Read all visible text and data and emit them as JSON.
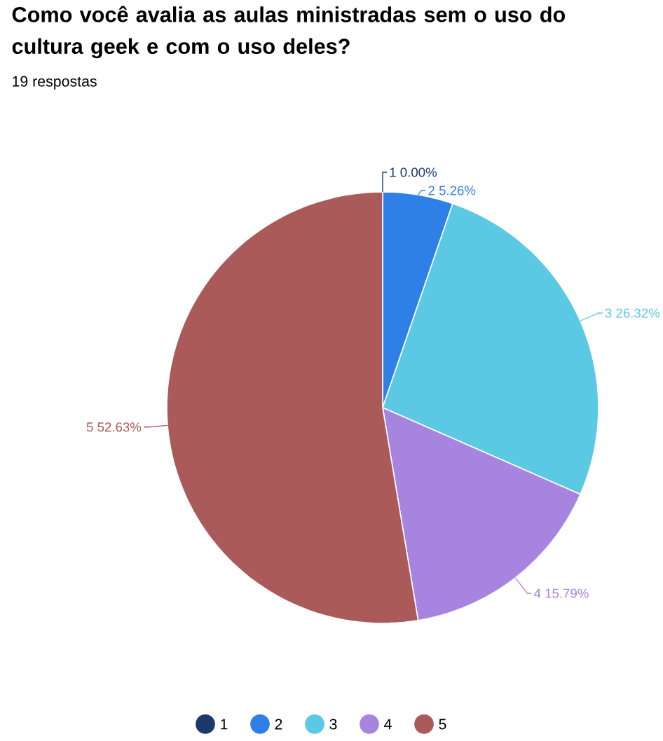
{
  "chart_data": {
    "type": "pie",
    "title": "Como você avalia as aulas ministradas sem o uso do cultura geek e com o uso deles?",
    "subtitle": "19 respostas",
    "categories": [
      "1",
      "2",
      "3",
      "4",
      "5"
    ],
    "values": [
      0.0,
      5.26,
      26.32,
      15.79,
      52.63
    ],
    "value_labels": [
      "0.00%",
      "5.26%",
      "26.32%",
      "15.79%",
      "52.63%"
    ],
    "colors": [
      "#1b3a6b",
      "#2f80e6",
      "#5bc8e4",
      "#a784e0",
      "#ab5a5a"
    ],
    "legend": "bottom"
  }
}
